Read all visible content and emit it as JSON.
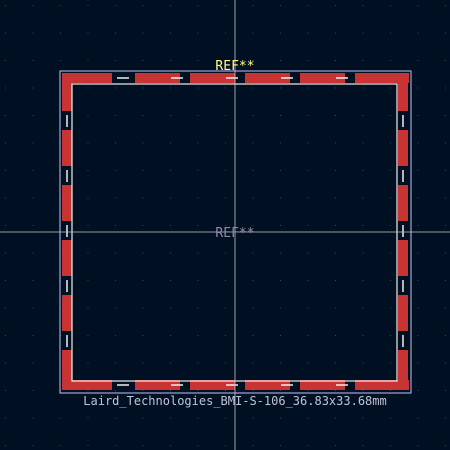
{
  "viewer": {
    "background_color": "#001023",
    "grid_color": "#394454",
    "crosshair_color": "#c8c8c8",
    "courtyard_color": "#c2c2fa",
    "pad_color": "#c83434",
    "silk_color": "#f2eded",
    "fab_color": "#f2eded"
  },
  "footprint": {
    "reference_label": "REF**",
    "reference_color": "#ffff8c",
    "value_ref_label": "REF**",
    "value_ref_color": "#8c8ca8",
    "name_label": "Laird_Technologies_BMI-S-106_36.83x33.68mm",
    "name_color": "#c2c2d6"
  }
}
